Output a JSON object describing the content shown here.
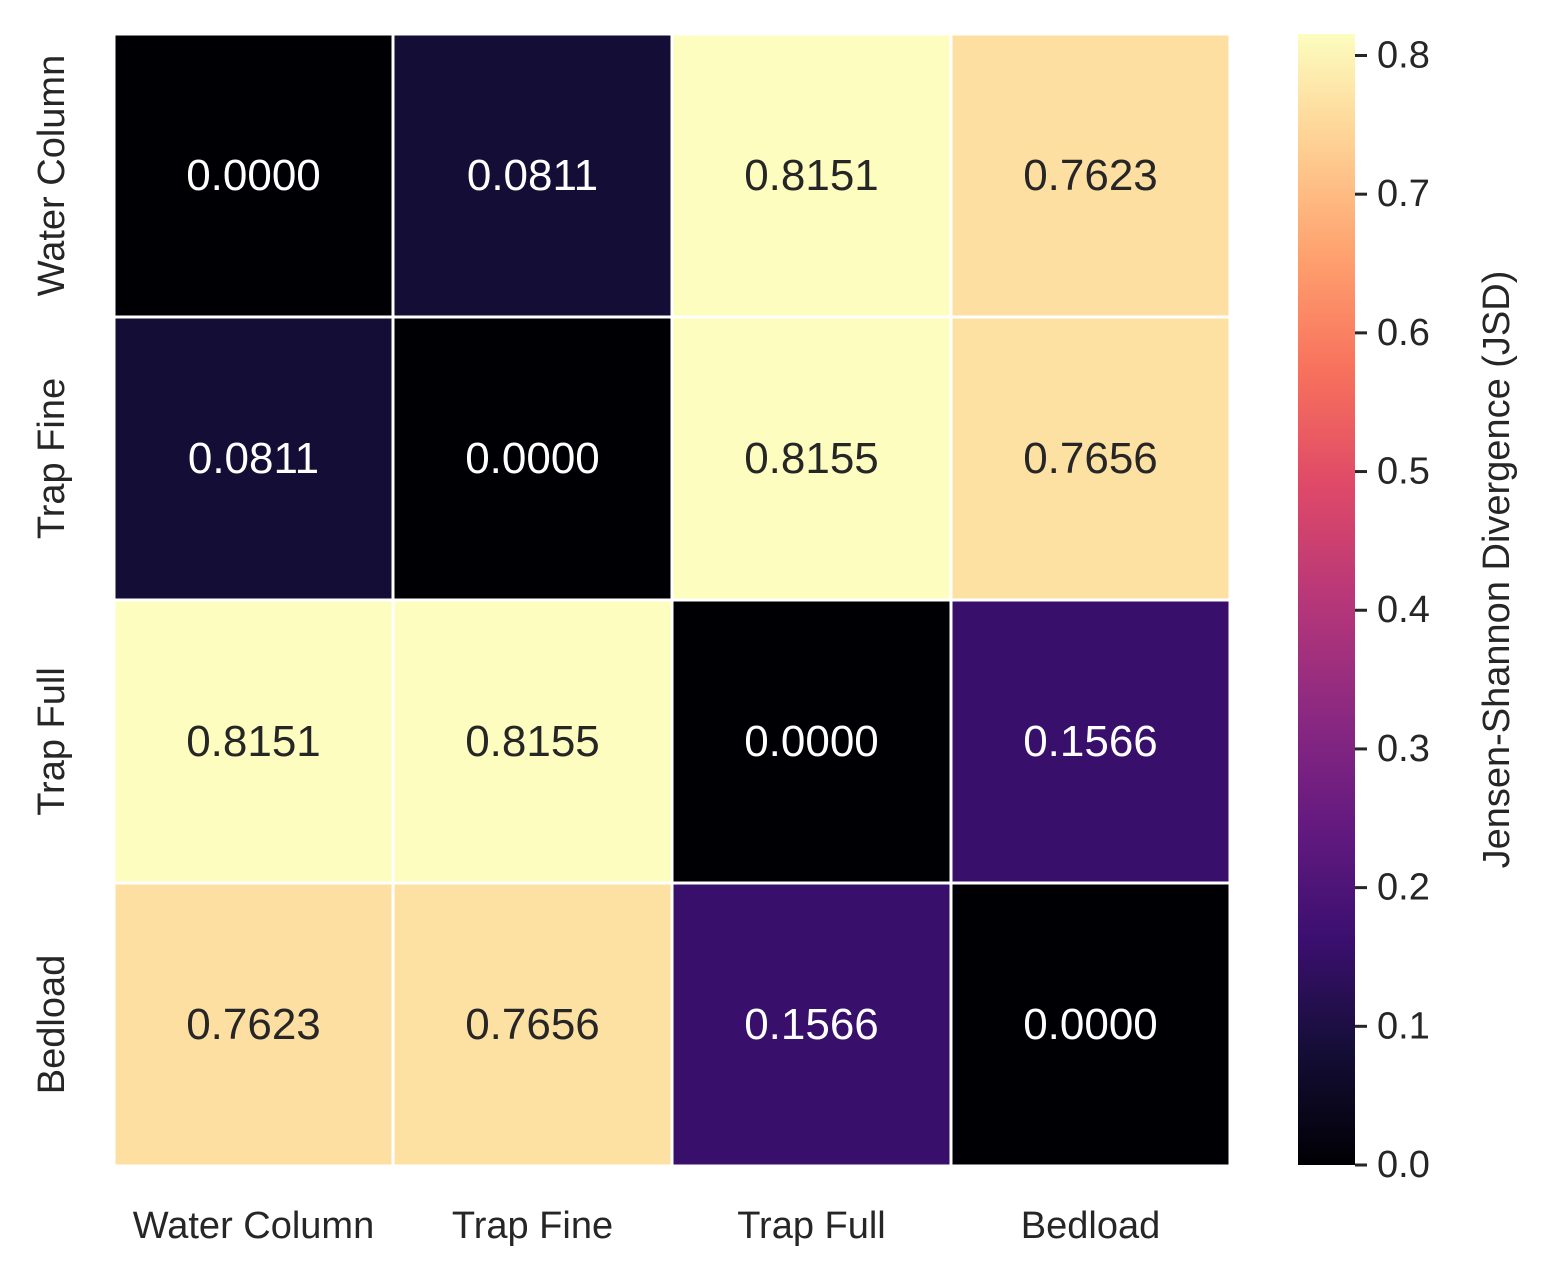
{
  "chart_data": {
    "type": "heatmap",
    "x_categories": [
      "Water Column",
      "Trap Fine",
      "Trap Full",
      "Bedload"
    ],
    "y_categories": [
      "Water Column",
      "Trap Fine",
      "Trap Full",
      "Bedload"
    ],
    "values": [
      [
        0.0,
        0.0811,
        0.8151,
        0.7623
      ],
      [
        0.0811,
        0.0,
        0.8155,
        0.7656
      ],
      [
        0.8151,
        0.8155,
        0.0,
        0.1566
      ],
      [
        0.7623,
        0.7656,
        0.1566,
        0.0
      ]
    ],
    "value_labels": [
      [
        "0.0000",
        "0.0811",
        "0.8151",
        "0.7623"
      ],
      [
        "0.0811",
        "0.0000",
        "0.8155",
        "0.7656"
      ],
      [
        "0.8151",
        "0.8155",
        "0.0000",
        "0.1566"
      ],
      [
        "0.7623",
        "0.7656",
        "0.1566",
        "0.0000"
      ]
    ],
    "colormap": "magma",
    "vmin": 0.0,
    "vmax": 0.8155,
    "colorbar": {
      "label": "Jensen-Shannon Divergence (JSD)",
      "ticks": [
        0.0,
        0.1,
        0.2,
        0.3,
        0.4,
        0.5,
        0.6,
        0.7,
        0.8
      ],
      "tick_labels": [
        "0.0",
        "0.1",
        "0.2",
        "0.3",
        "0.4",
        "0.5",
        "0.6",
        "0.7",
        "0.8"
      ]
    },
    "title": "",
    "xlabel": "",
    "ylabel": ""
  }
}
